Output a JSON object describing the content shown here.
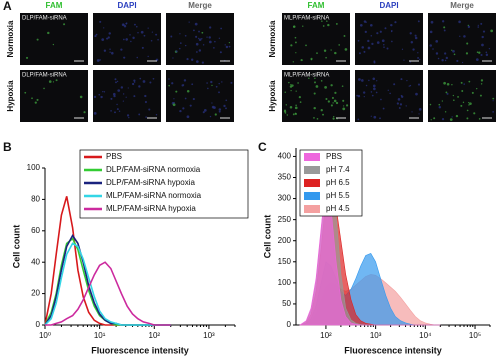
{
  "panel_a": {
    "label": "A",
    "left_headers": [
      "FAM",
      "DAPI",
      "Merge"
    ],
    "right_headers": [
      "FAM",
      "DAPI",
      "Merge"
    ],
    "rows": [
      "Normoxia",
      "Hypoxia"
    ],
    "left_samples": [
      "DLP/FAM-siRNA",
      "DLP/FAM-siRNA"
    ],
    "right_samples": [
      "MLP/FAM-siRNA",
      "MLP/FAM-siRNA"
    ]
  },
  "chart_data": [
    {
      "type": "line",
      "panel_label": "B",
      "x_label": "Fluorescence intensity",
      "y_label": "Cell count",
      "xscale": "log",
      "xlim": [
        1,
        3000
      ],
      "ylim": [
        0,
        100
      ],
      "xticks": [
        {
          "value": 1,
          "label": "10⁰"
        },
        {
          "value": 10,
          "label": "10¹"
        },
        {
          "value": 100,
          "label": "10²"
        },
        {
          "value": 1000,
          "label": "10³"
        }
      ],
      "yticks": [
        0,
        20,
        40,
        60,
        80,
        100
      ],
      "legend": "upper right",
      "x": [
        1,
        1.3,
        1.6,
        2,
        2.5,
        3.2,
        4,
        5,
        6.3,
        8,
        10,
        12.6,
        16,
        20,
        25,
        32,
        40,
        50,
        63,
        80,
        100,
        126,
        160,
        200
      ],
      "series": [
        {
          "name": "PBS",
          "color": "#d7191c",
          "values": [
            0,
            20,
            45,
            70,
            82,
            62,
            35,
            18,
            8,
            3,
            1,
            0,
            0,
            0,
            0,
            0,
            0,
            0,
            0,
            0,
            0,
            0,
            0,
            0
          ]
        },
        {
          "name": "DLP/FAM-siRNA normoxia",
          "color": "#33cc33",
          "values": [
            0,
            8,
            20,
            38,
            52,
            55,
            48,
            35,
            22,
            12,
            6,
            3,
            1,
            0,
            0,
            0,
            0,
            0,
            0,
            0,
            0,
            0,
            0,
            0
          ]
        },
        {
          "name": "DLP/FAM-siRNA hypoxia",
          "color": "#1a237e",
          "values": [
            0,
            6,
            18,
            35,
            50,
            57,
            52,
            40,
            25,
            14,
            7,
            3,
            1,
            1,
            0,
            0,
            0,
            0,
            0,
            0,
            0,
            0,
            0,
            0
          ]
        },
        {
          "name": "MLP/FAM-siRNA normoxia",
          "color": "#33d6e6",
          "values": [
            0,
            4,
            14,
            30,
            45,
            52,
            50,
            42,
            30,
            18,
            9,
            4,
            2,
            1,
            0,
            0,
            0,
            0,
            0,
            0,
            0,
            0,
            0,
            0
          ]
        },
        {
          "name": "MLP/FAM-siRNA hypoxia",
          "color": "#cc2a9e",
          "values": [
            0,
            0,
            1,
            2,
            4,
            6,
            10,
            16,
            24,
            32,
            38,
            40,
            36,
            28,
            20,
            12,
            7,
            4,
            2,
            1,
            0,
            0,
            0,
            0
          ]
        }
      ]
    },
    {
      "type": "area",
      "panel_label": "C",
      "x_label": "Fluorescence intensity",
      "y_label": "Cell count",
      "xscale": "log",
      "xlim": [
        25,
        200000
      ],
      "ylim": [
        0,
        420
      ],
      "xticks": [
        {
          "value": 100,
          "label": "10²"
        },
        {
          "value": 1000,
          "label": "10³"
        },
        {
          "value": 10000,
          "label": "10⁴"
        },
        {
          "value": 100000,
          "label": "10⁵"
        }
      ],
      "yticks": [
        0,
        50,
        100,
        150,
        200,
        250,
        300,
        350,
        400
      ],
      "legend": "upper left",
      "x": [
        30,
        40,
        50,
        63,
        80,
        100,
        126,
        160,
        200,
        250,
        320,
        400,
        500,
        630,
        800,
        1000,
        1260,
        1600,
        2000,
        2500,
        3200,
        4000,
        5000,
        6300,
        8000,
        10000,
        12600,
        16000,
        20000
      ],
      "series": [
        {
          "name": "PBS",
          "color": "#ee66dd",
          "values": [
            0,
            10,
            40,
            110,
            230,
            340,
            280,
            150,
            60,
            20,
            5,
            2,
            0,
            0,
            0,
            0,
            0,
            0,
            0,
            0,
            0,
            0,
            0,
            0,
            0,
            0,
            0,
            0,
            0
          ]
        },
        {
          "name": "pH 7.4",
          "color": "#999999",
          "values": [
            0,
            8,
            35,
            100,
            220,
            360,
            380,
            260,
            120,
            40,
            12,
            4,
            1,
            0,
            0,
            0,
            0,
            0,
            0,
            0,
            0,
            0,
            0,
            0,
            0,
            0,
            0,
            0,
            0
          ]
        },
        {
          "name": "pH 6.5",
          "color": "#dd2222",
          "values": [
            0,
            5,
            25,
            80,
            180,
            300,
            330,
            280,
            200,
            120,
            60,
            25,
            10,
            4,
            2,
            0,
            0,
            0,
            0,
            0,
            0,
            0,
            0,
            0,
            0,
            0,
            0,
            0,
            0
          ]
        },
        {
          "name": "pH 5.5",
          "color": "#3399ee",
          "values": [
            0,
            3,
            15,
            45,
            100,
            150,
            140,
            110,
            80,
            70,
            85,
            110,
            140,
            165,
            170,
            150,
            110,
            70,
            40,
            20,
            10,
            5,
            2,
            0,
            0,
            0,
            0,
            0,
            0
          ]
        },
        {
          "name": "pH 4.5",
          "color": "#f4a0a0",
          "values": [
            0,
            2,
            8,
            25,
            55,
            90,
            100,
            95,
            85,
            80,
            85,
            95,
            105,
            115,
            120,
            118,
            110,
            100,
            90,
            80,
            65,
            50,
            35,
            20,
            10,
            5,
            2,
            0,
            0
          ]
        }
      ]
    }
  ]
}
